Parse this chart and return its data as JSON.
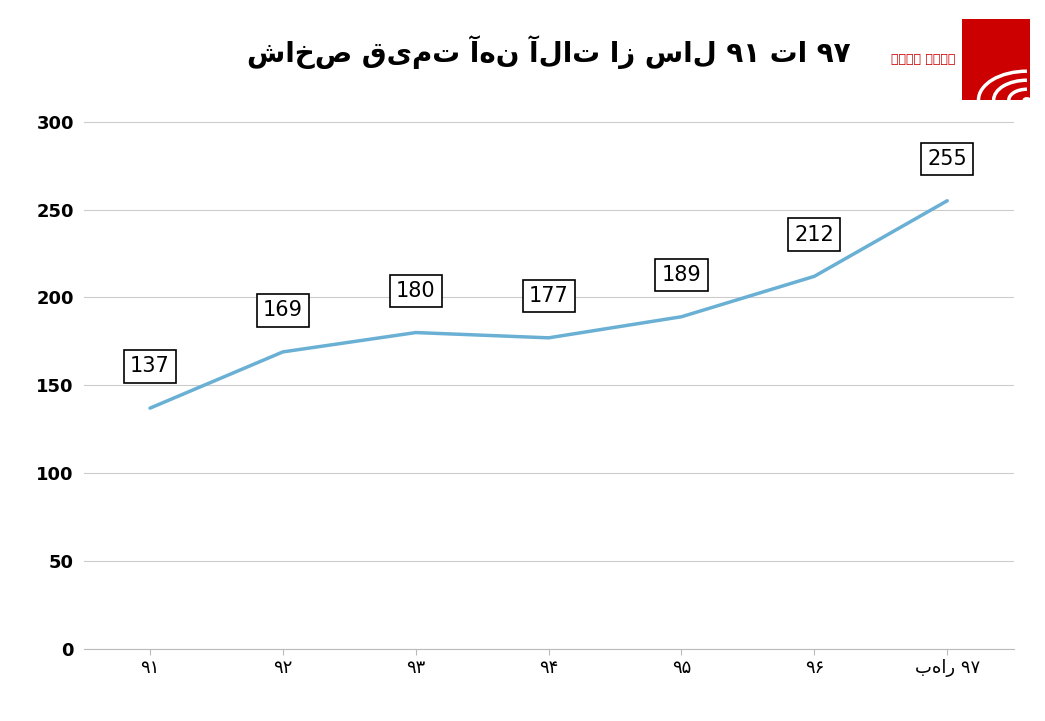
{
  "title": "شاخص قیمت آهن آلات از سال ۹۱ تا ۹۷",
  "x_labels": [
    "۹۱",
    "۹۲",
    "۹۳",
    "۹۴",
    "۹۵",
    "۹۶",
    "بهار ۹۷"
  ],
  "x_values": [
    0,
    1,
    2,
    3,
    4,
    5,
    6
  ],
  "y_values": [
    137,
    169,
    180,
    177,
    189,
    212,
    255
  ],
  "ylim": [
    0,
    320
  ],
  "yticks": [
    0,
    50,
    100,
    150,
    200,
    250,
    300
  ],
  "line_color": "#6ab0d4",
  "background_color": "#ffffff",
  "title_fontsize": 20,
  "label_fontsize": 13,
  "annotation_fontsize": 15,
  "grid_color": "#cccccc",
  "ann_offsets": [
    18,
    18,
    18,
    18,
    18,
    18,
    18
  ]
}
